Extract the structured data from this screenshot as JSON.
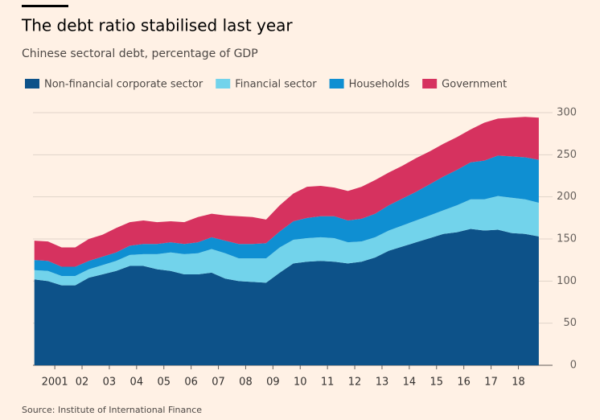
{
  "chart_data": {
    "type": "stacked_area",
    "title": "The debt ratio stabilised last year",
    "subtitle": "Chinese sectoral debt, percentage of GDP",
    "source": "Source: Institute of International Finance",
    "x": [
      2000.25,
      2000.75,
      2001.25,
      2001.75,
      2002.25,
      2002.75,
      2003.25,
      2003.75,
      2004.25,
      2004.75,
      2005.25,
      2005.75,
      2006.25,
      2006.75,
      2007.25,
      2007.75,
      2008.25,
      2008.75,
      2009.25,
      2009.75,
      2010.25,
      2010.75,
      2011.25,
      2011.75,
      2012.25,
      2012.75,
      2013.25,
      2013.75,
      2014.25,
      2014.75,
      2015.25,
      2015.75,
      2016.25,
      2016.75,
      2017.25,
      2017.75,
      2018.25,
      2018.75
    ],
    "series": [
      {
        "name": "Non-financial corporate sector",
        "color": "#0d5289",
        "values": [
          102,
          100,
          95,
          95,
          104,
          108,
          112,
          118,
          118,
          114,
          112,
          108,
          108,
          110,
          103,
          100,
          99,
          98,
          110,
          121,
          123,
          124,
          123,
          121,
          123,
          128,
          136,
          141,
          146,
          151,
          156,
          158,
          162,
          160,
          161,
          157,
          156,
          153
        ]
      },
      {
        "name": "Financial sector",
        "color": "#72d3eb",
        "values": [
          11,
          12,
          11,
          11,
          10,
          11,
          12,
          13,
          14,
          18,
          22,
          24,
          25,
          28,
          30,
          27,
          28,
          29,
          30,
          28,
          28,
          28,
          28,
          25,
          24,
          24,
          24,
          25,
          26,
          27,
          28,
          32,
          35,
          37,
          40,
          42,
          41,
          40
        ]
      },
      {
        "name": "Households",
        "color": "#0f8fd2",
        "values": [
          12,
          12,
          11,
          11,
          10,
          10,
          10,
          11,
          12,
          12,
          12,
          12,
          13,
          14,
          15,
          17,
          17,
          18,
          19,
          22,
          24,
          25,
          26,
          26,
          27,
          28,
          30,
          32,
          34,
          37,
          40,
          42,
          44,
          46,
          48,
          49,
          50,
          51
        ]
      },
      {
        "name": "Government",
        "color": "#d6325f",
        "values": [
          23,
          23,
          23,
          23,
          26,
          26,
          29,
          28,
          28,
          26,
          25,
          26,
          30,
          28,
          30,
          33,
          32,
          28,
          31,
          33,
          37,
          36,
          34,
          35,
          38,
          40,
          39,
          39,
          40,
          39,
          39,
          39,
          39,
          45,
          44,
          46,
          48,
          50
        ]
      }
    ],
    "xlim": [
      2000.2,
      2018.9
    ],
    "xticks": [
      {
        "value": 2001,
        "label": "2001"
      },
      {
        "value": 2002,
        "label": "02"
      },
      {
        "value": 2003,
        "label": "03"
      },
      {
        "value": 2004,
        "label": "04"
      },
      {
        "value": 2005,
        "label": "05"
      },
      {
        "value": 2006,
        "label": "06"
      },
      {
        "value": 2007,
        "label": "07"
      },
      {
        "value": 2008,
        "label": "08"
      },
      {
        "value": 2009,
        "label": "09"
      },
      {
        "value": 2010,
        "label": "10"
      },
      {
        "value": 2011,
        "label": "11"
      },
      {
        "value": 2012,
        "label": "12"
      },
      {
        "value": 2013,
        "label": "13"
      },
      {
        "value": 2014,
        "label": "14"
      },
      {
        "value": 2015,
        "label": "15"
      },
      {
        "value": 2016,
        "label": "16"
      },
      {
        "value": 2017,
        "label": "17"
      },
      {
        "value": 2018,
        "label": "18"
      }
    ],
    "ylim": [
      0,
      300
    ],
    "yticks": [
      0,
      50,
      100,
      150,
      200,
      250,
      300
    ],
    "grid": true,
    "legend": "top"
  }
}
